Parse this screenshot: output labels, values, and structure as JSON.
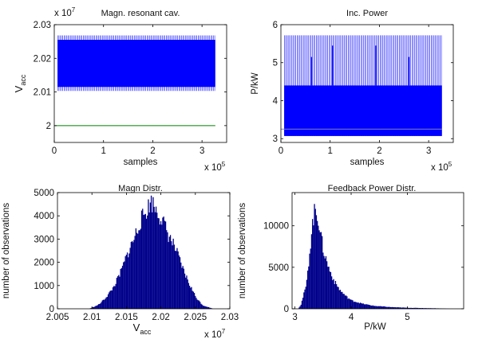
{
  "chart_data": [
    {
      "type": "line",
      "title": "Magn. resonant cav.",
      "xlabel": "samples",
      "ylabel": "V",
      "ylabel_sub": "acc",
      "x_multiplier": "x 10",
      "x_multiplier_exp": "5",
      "y_multiplier": "x 10",
      "y_multiplier_exp": "7",
      "xlim": [
        0,
        3.5
      ],
      "ylim": [
        1.995,
        2.03
      ],
      "xticks": [
        0,
        1,
        2,
        3
      ],
      "xtick_labels": [
        "0",
        "1",
        "2",
        "3"
      ],
      "yticks": [
        2.0,
        2.01,
        2.02,
        2.03
      ],
      "ytick_labels": [
        "2",
        "2.01",
        "2.02",
        "2.03"
      ],
      "colors": {
        "signal": "#0000ff",
        "reference": "#008000"
      },
      "series": [
        {
          "band": {
            "x": [
              0.07,
              3.27
            ],
            "y_min": 2.0103,
            "y_max": 2.0268,
            "core_min": 2.0115,
            "core_max": 2.0255
          }
        },
        {
          "line": {
            "x": [
              0,
              3.27
            ],
            "y": [
              2.0,
              2.0
            ]
          }
        }
      ]
    },
    {
      "type": "line",
      "title": "Inc. Power",
      "xlabel": "samples",
      "ylabel": "P/kW",
      "x_multiplier": "x 10",
      "x_multiplier_exp": "5",
      "xlim": [
        0,
        3.5
      ],
      "ylim": [
        2.9,
        6.0
      ],
      "xticks": [
        0,
        1,
        2,
        3
      ],
      "xtick_labels": [
        "0",
        "1",
        "2",
        "3"
      ],
      "yticks": [
        3,
        4,
        5,
        6
      ],
      "ytick_labels": [
        "3",
        "4",
        "5",
        "6"
      ],
      "colors": {
        "signal": "#0000ff",
        "reference": "#8080c0"
      },
      "series": [
        {
          "band": {
            "x": [
              0.07,
              3.27
            ],
            "y_min": 3.07,
            "y_max": 5.72,
            "core_min": 3.07,
            "core_max": 4.4
          }
        },
        {
          "line": {
            "x": [
              0,
              3.27
            ],
            "y": [
              3.25,
              3.25
            ]
          }
        }
      ],
      "spikes": [
        {
          "x": 0.62,
          "y": 5.15
        },
        {
          "x": 1.05,
          "y": 5.45
        },
        {
          "x": 1.93,
          "y": 5.45
        },
        {
          "x": 2.6,
          "y": 5.15
        }
      ]
    },
    {
      "type": "bar",
      "title": "Magn Distr.",
      "xlabel": "V",
      "xlabel_sub": "acc",
      "ylabel": "number of observations",
      "x_multiplier": "x 10",
      "x_multiplier_exp": "7",
      "xlim": [
        2.005,
        2.03
      ],
      "ylim": [
        0,
        5000
      ],
      "xticks": [
        2.005,
        2.01,
        2.015,
        2.02,
        2.025,
        2.03
      ],
      "xtick_labels": [
        "2.005",
        "2.01",
        "2.015",
        "2.02",
        "2.025",
        "2.03"
      ],
      "yticks": [
        0,
        1000,
        2000,
        3000,
        4000,
        5000
      ],
      "ytick_labels": [
        "0",
        "1000",
        "2000",
        "3000",
        "4000",
        "5000"
      ],
      "colors": {
        "bars": "#00008b"
      },
      "profile": {
        "x": [
          2.0095,
          2.0105,
          2.011,
          2.012,
          2.013,
          2.014,
          2.015,
          2.016,
          2.017,
          2.018,
          2.0185,
          2.019,
          2.02,
          2.021,
          2.022,
          2.023,
          2.024,
          2.025,
          2.026,
          2.0275
        ],
        "y": [
          0,
          120,
          200,
          500,
          900,
          1500,
          2300,
          3000,
          3800,
          4300,
          4650,
          4400,
          3900,
          3200,
          2600,
          1800,
          1100,
          500,
          150,
          0
        ]
      }
    },
    {
      "type": "bar",
      "title": "Feedback Power Distr.",
      "xlabel": "P/kW",
      "ylabel": "number of observations",
      "xlim": [
        2.95,
        6.0
      ],
      "ylim": [
        0,
        14000
      ],
      "xticks": [
        3,
        4,
        5
      ],
      "xtick_labels": [
        "3",
        "4",
        "5"
      ],
      "yticks": [
        0,
        5000,
        10000
      ],
      "ytick_labels": [
        "0",
        "5000",
        "10000"
      ],
      "colors": {
        "bars": "#00008b"
      },
      "profile": {
        "x": [
          3.05,
          3.1,
          3.2,
          3.25,
          3.3,
          3.35,
          3.4,
          3.45,
          3.5,
          3.6,
          3.7,
          3.8,
          3.9,
          4.0,
          4.2,
          4.4,
          4.7,
          5.0,
          5.5,
          5.75
        ],
        "y": [
          0,
          500,
          3000,
          6500,
          10000,
          12000,
          11200,
          9000,
          7000,
          4800,
          3200,
          2200,
          1500,
          1000,
          600,
          350,
          200,
          120,
          60,
          0
        ]
      }
    }
  ]
}
